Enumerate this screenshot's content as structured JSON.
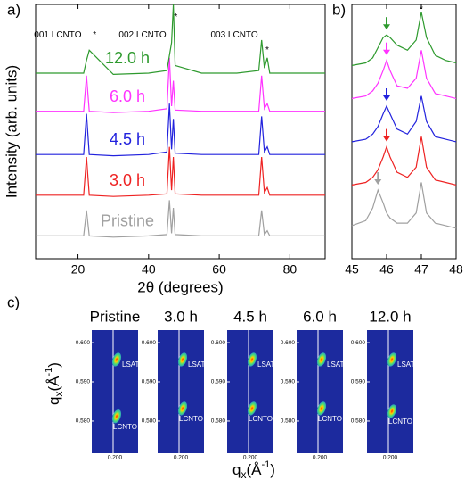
{
  "chart_data": [
    {
      "type": "line",
      "label": "a)",
      "xlabel": "2θ (degrees)",
      "ylabel": "Intensity (arb. units)",
      "x": [
        8,
        15,
        21.6,
        22.4,
        23.2,
        30,
        40,
        45.2,
        45.9,
        46.5,
        47.0,
        47.5,
        55,
        65,
        71.2,
        72.0,
        72.8,
        73.6,
        74.3,
        80,
        90
      ],
      "series": [
        {
          "name": "Pristine",
          "color": "#a0a0a0",
          "values": [
            9,
            9,
            9,
            19,
            9,
            8.5,
            9,
            9.5,
            23,
            10,
            20,
            9.5,
            9,
            9,
            9,
            19,
            9.5,
            11,
            9,
            9,
            9
          ]
        },
        {
          "name": "3.0 h",
          "color": "#ee2222",
          "values": [
            25,
            25,
            25,
            40,
            25,
            24.5,
            25,
            25.5,
            44,
            27,
            40,
            25.5,
            25,
            25,
            25,
            40,
            26,
            28,
            25,
            25,
            25
          ]
        },
        {
          "name": "4.5 h",
          "color": "#2222dd",
          "values": [
            41,
            41,
            41,
            57,
            41,
            40.5,
            41,
            42,
            61,
            43,
            55,
            41.5,
            41,
            41,
            41,
            56,
            42,
            44,
            41,
            41,
            41
          ]
        },
        {
          "name": "6.0 h",
          "color": "#ff33ff",
          "values": [
            58,
            58,
            58,
            72,
            58,
            57.5,
            58,
            59,
            79,
            60,
            70,
            58.5,
            58,
            58,
            58,
            72,
            59,
            61,
            58,
            58,
            58
          ]
        },
        {
          "name": "12.0 h",
          "color": "#2e9a2e",
          "values": [
            73,
            73,
            73,
            78,
            82,
            72.5,
            73,
            74,
            80,
            85,
            100,
            76,
            73,
            73,
            74,
            86,
            75,
            79,
            73,
            73,
            73
          ]
        }
      ],
      "annotations": [
        "001 LCNTO",
        "*",
        "002 LCNTO",
        "*",
        "003 LCNTO",
        "*"
      ],
      "xlim": [
        8,
        90
      ],
      "xticks": [
        20,
        40,
        60,
        80
      ],
      "ylim": [
        0,
        100
      ]
    },
    {
      "type": "line",
      "label": "b)",
      "x": [
        45,
        45.4,
        45.6,
        45.75,
        45.9,
        46.0,
        46.1,
        46.3,
        46.6,
        46.85,
        47.0,
        47.15,
        47.4,
        47.7,
        48
      ],
      "series": [
        {
          "color": "#a0a0a0",
          "values": [
            13,
            15,
            20,
            27,
            22,
            18,
            16,
            14,
            14,
            18,
            30,
            18,
            14,
            13,
            12
          ]
        },
        {
          "color": "#ee2222",
          "values": [
            29,
            30,
            32,
            35,
            40,
            44,
            40,
            34,
            32,
            36,
            48,
            36,
            31,
            30,
            29
          ]
        },
        {
          "color": "#2222dd",
          "values": [
            46,
            47,
            49,
            52,
            57,
            60,
            57,
            51,
            49,
            54,
            64,
            54,
            48,
            47,
            46
          ]
        },
        {
          "color": "#ff33ff",
          "values": [
            63,
            64,
            66,
            69,
            74,
            78,
            74,
            68,
            67,
            71,
            82,
            71,
            65,
            64,
            63
          ]
        },
        {
          "color": "#2e9a2e",
          "values": [
            76,
            77,
            79,
            83,
            87,
            88,
            87,
            84,
            82,
            86,
            97,
            87,
            80,
            78,
            77
          ]
        }
      ],
      "annotations": [
        "*"
      ],
      "xlim": [
        45,
        48
      ],
      "xticks": [
        45,
        46,
        47,
        48
      ],
      "ylim": [
        0,
        100
      ]
    }
  ],
  "rsm": {
    "label": "c)",
    "titles": [
      "Pristine",
      "3.0 h",
      "4.5 h",
      "6.0 h",
      "12.0 h"
    ],
    "ylabel": [
      "q",
      "x",
      "(Å",
      "-1",
      ")"
    ],
    "xlabel": [
      "q",
      "x",
      "(Å",
      "-1",
      ")"
    ],
    "ylim": [
      0.5718,
      0.6032
    ],
    "yticks": [
      {
        "value": 0.6,
        "label": "0.600"
      },
      {
        "value": 0.59,
        "label": "0.590"
      },
      {
        "value": 0.58,
        "label": "0.580"
      }
    ],
    "xlim": [
      0.195,
      0.205
    ],
    "xticks": [
      {
        "value": 0.2,
        "label": "0.200"
      }
    ],
    "peaks": [
      "LSAT",
      "LCNTO"
    ]
  }
}
